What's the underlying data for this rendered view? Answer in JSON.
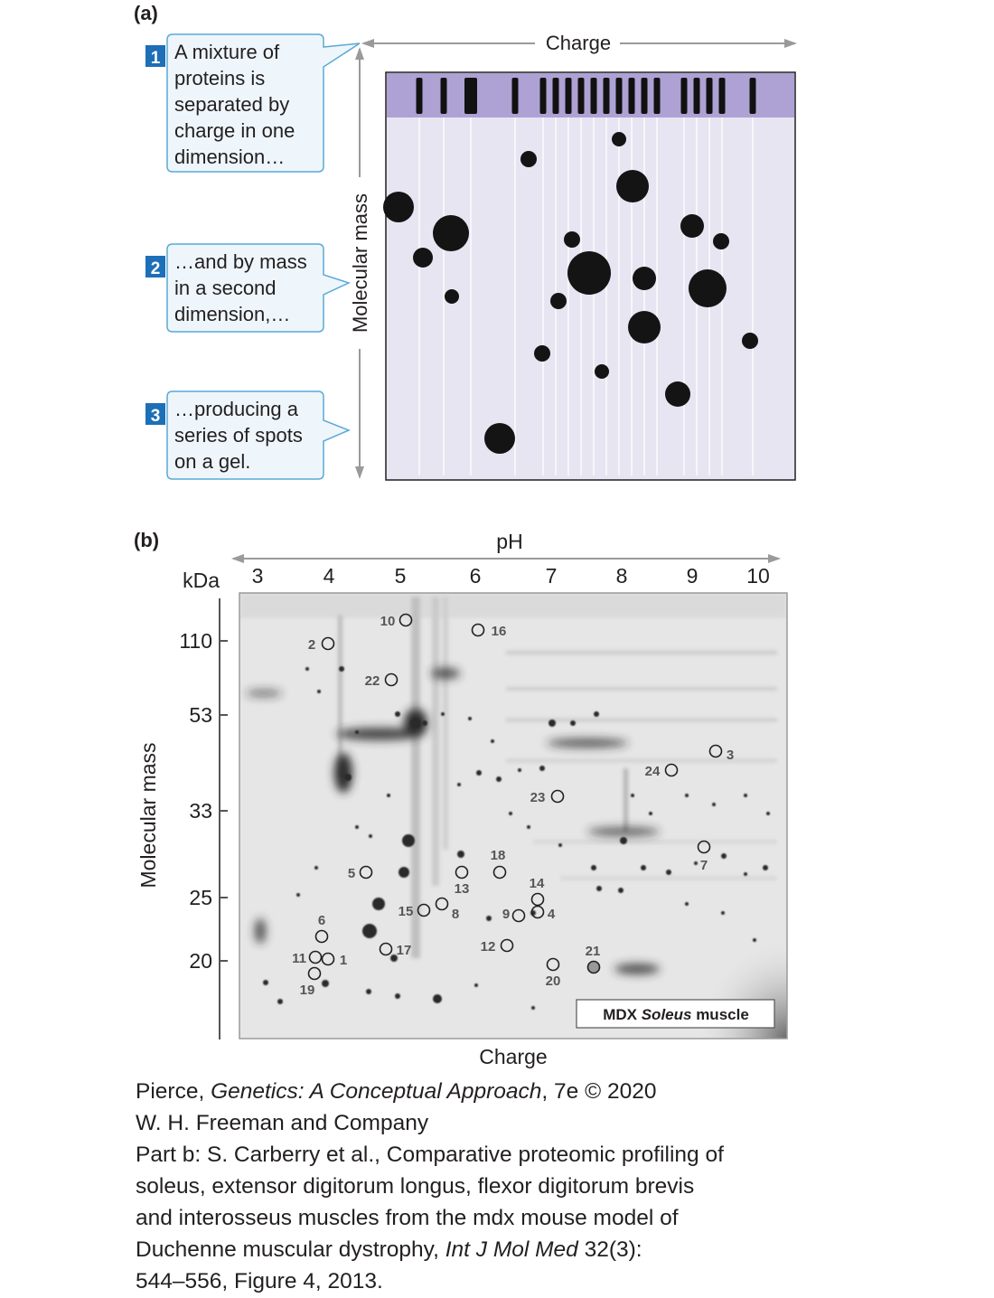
{
  "part_a": {
    "label": "(a)",
    "axis_x_label": "Charge",
    "axis_y_label": "Molecular mass",
    "steps": [
      {
        "number": "1",
        "lines": [
          "A mixture of",
          "proteins is",
          "separated by",
          "charge in one",
          "dimension…"
        ]
      },
      {
        "number": "2",
        "lines": [
          "…and by mass",
          "in a second",
          "dimension,…"
        ]
      },
      {
        "number": "3",
        "lines": [
          "…producing a",
          "series of spots",
          "on a gel."
        ]
      }
    ],
    "colors": {
      "gel": "#e7e5f2",
      "band_strip": "#aea2d4",
      "callout_border": "#5aa9d6",
      "callout_fill": "#eef6fc",
      "step_badge": "#1d6fb7"
    }
  },
  "part_b": {
    "label": "(b)",
    "ph_label": "pH",
    "ph_ticks": [
      "3",
      "4",
      "5",
      "6",
      "7",
      "8",
      "9",
      "10"
    ],
    "kda_label": "kDa",
    "mass_ticks": [
      "110",
      "53",
      "33",
      "25",
      "20"
    ],
    "y_axis_label": "Molecular mass",
    "x_axis_label": "Charge",
    "inset_label_prefix": "MDX ",
    "inset_label_italic": "Soleus",
    "inset_label_suffix": " muscle",
    "spots": [
      {
        "id": "10"
      },
      {
        "id": "16"
      },
      {
        "id": "2"
      },
      {
        "id": "22"
      },
      {
        "id": "3"
      },
      {
        "id": "24"
      },
      {
        "id": "23"
      },
      {
        "id": "7"
      },
      {
        "id": "18"
      },
      {
        "id": "5"
      },
      {
        "id": "13"
      },
      {
        "id": "14"
      },
      {
        "id": "15"
      },
      {
        "id": "8"
      },
      {
        "id": "9"
      },
      {
        "id": "4"
      },
      {
        "id": "6"
      },
      {
        "id": "12"
      },
      {
        "id": "21"
      },
      {
        "id": "17"
      },
      {
        "id": "11"
      },
      {
        "id": "1"
      },
      {
        "id": "20"
      },
      {
        "id": "19"
      }
    ]
  },
  "credit": {
    "line1_prefix": "Pierce, ",
    "line1_italic": "Genetics: A Conceptual Approach",
    "line1_suffix": ", 7e © 2020",
    "line2": "W. H. Freeman and Company",
    "line3": "Part b: S. Carberry et al., Comparative proteomic profiling of",
    "line4": "soleus, extensor digitorum longus, flexor digitorum brevis",
    "line5": "and interosseus muscles from the mdx mouse model of",
    "line6_prefix": "Duchenne muscular dystrophy, ",
    "line6_italic": "Int J Mol Med",
    "line6_suffix": " 32(3):",
    "line7": "544–556, Figure 4, 2013."
  }
}
